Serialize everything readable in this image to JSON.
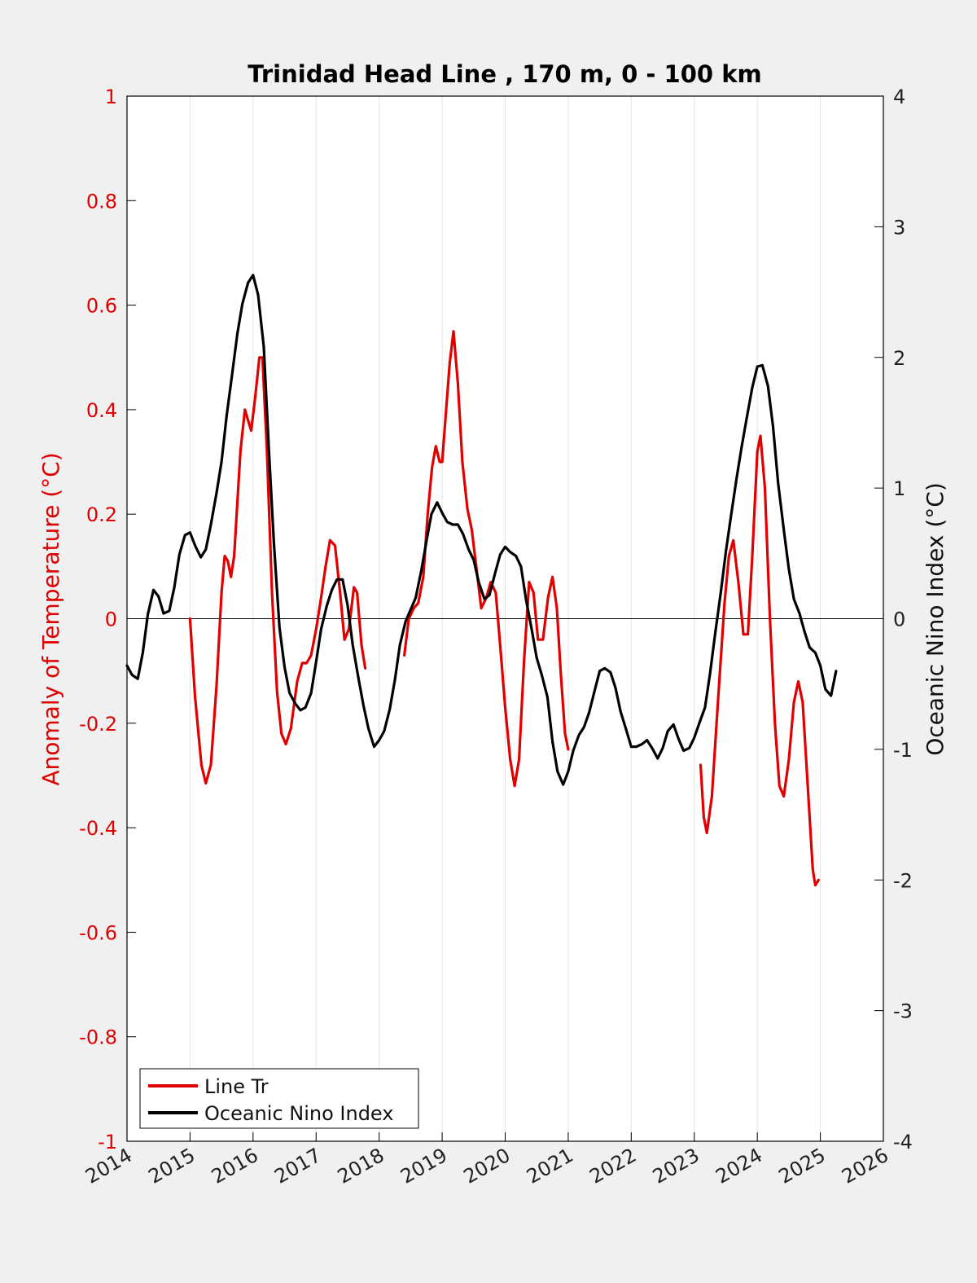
{
  "chart_data": {
    "type": "line",
    "title": "Trinidad Head Line , 170 m, 0 - 100 km",
    "ylabel_left": "Anomaly of Temperature (°C)",
    "ylabel_right": "Oceanic Nino Index (°C)",
    "xlim": [
      2014,
      2026
    ],
    "ylim_left": [
      -1,
      1
    ],
    "ylim_right": [
      -4,
      4
    ],
    "x_ticks": [
      "2014",
      "2015",
      "2016",
      "2017",
      "2018",
      "2019",
      "2020",
      "2021",
      "2022",
      "2023",
      "2024",
      "2025",
      "2026"
    ],
    "y_ticks_left": [
      "1",
      "0.8",
      "0.6",
      "0.4",
      "0.2",
      "0",
      "-0.2",
      "-0.4",
      "-0.6",
      "-0.8",
      "-1"
    ],
    "y_ticks_right": [
      "4",
      "3",
      "2",
      "1",
      "0",
      "-1",
      "-2",
      "-3",
      "-4"
    ],
    "grid": "vertical",
    "zero_line": true,
    "legend_position": "bottom-left",
    "colors": {
      "line_tr": "#e00000",
      "oni": "#000000"
    },
    "series": [
      {
        "name": "Line Tr",
        "axis": "left",
        "color": "#e00000",
        "segments": [
          [
            [
              2015.0,
              0.0
            ],
            [
              2015.08,
              -0.15
            ],
            [
              2015.18,
              -0.28
            ],
            [
              2015.25,
              -0.315
            ],
            [
              2015.33,
              -0.28
            ],
            [
              2015.42,
              -0.13
            ],
            [
              2015.5,
              0.05
            ],
            [
              2015.55,
              0.12
            ],
            [
              2015.6,
              0.11
            ],
            [
              2015.65,
              0.08
            ],
            [
              2015.7,
              0.12
            ],
            [
              2015.8,
              0.32
            ],
            [
              2015.87,
              0.4
            ],
            [
              2015.92,
              0.38
            ],
            [
              2015.97,
              0.36
            ],
            [
              2016.03,
              0.42
            ],
            [
              2016.1,
              0.5
            ],
            [
              2016.15,
              0.5
            ],
            [
              2016.22,
              0.32
            ],
            [
              2016.3,
              0.05
            ],
            [
              2016.38,
              -0.14
            ],
            [
              2016.45,
              -0.22
            ],
            [
              2016.52,
              -0.24
            ],
            [
              2016.6,
              -0.21
            ],
            [
              2016.7,
              -0.12
            ],
            [
              2016.78,
              -0.085
            ],
            [
              2016.85,
              -0.085
            ],
            [
              2016.92,
              -0.07
            ],
            [
              2017.0,
              -0.02
            ],
            [
              2017.08,
              0.04
            ],
            [
              2017.15,
              0.1
            ],
            [
              2017.22,
              0.15
            ],
            [
              2017.3,
              0.14
            ],
            [
              2017.38,
              0.05
            ],
            [
              2017.45,
              -0.04
            ],
            [
              2017.52,
              -0.02
            ],
            [
              2017.6,
              0.06
            ],
            [
              2017.65,
              0.05
            ],
            [
              2017.72,
              -0.05
            ],
            [
              2017.78,
              -0.095
            ]
          ],
          [
            [
              2018.4,
              -0.07
            ],
            [
              2018.47,
              0.0
            ],
            [
              2018.55,
              0.02
            ],
            [
              2018.62,
              0.03
            ],
            [
              2018.7,
              0.08
            ],
            [
              2018.77,
              0.2
            ],
            [
              2018.84,
              0.29
            ],
            [
              2018.9,
              0.33
            ],
            [
              2018.96,
              0.3
            ],
            [
              2019.0,
              0.3
            ],
            [
              2019.05,
              0.38
            ],
            [
              2019.12,
              0.49
            ],
            [
              2019.18,
              0.55
            ],
            [
              2019.25,
              0.45
            ],
            [
              2019.32,
              0.3
            ],
            [
              2019.4,
              0.21
            ],
            [
              2019.47,
              0.17
            ],
            [
              2019.55,
              0.09
            ],
            [
              2019.62,
              0.02
            ],
            [
              2019.7,
              0.04
            ],
            [
              2019.77,
              0.07
            ],
            [
              2019.85,
              0.05
            ],
            [
              2019.92,
              -0.05
            ],
            [
              2020.0,
              -0.17
            ],
            [
              2020.08,
              -0.27
            ],
            [
              2020.15,
              -0.32
            ],
            [
              2020.22,
              -0.27
            ],
            [
              2020.3,
              -0.08
            ],
            [
              2020.38,
              0.07
            ],
            [
              2020.45,
              0.05
            ],
            [
              2020.52,
              -0.04
            ],
            [
              2020.6,
              -0.04
            ],
            [
              2020.68,
              0.04
            ],
            [
              2020.75,
              0.08
            ],
            [
              2020.82,
              0.02
            ],
            [
              2020.88,
              -0.1
            ],
            [
              2020.95,
              -0.22
            ],
            [
              2021.0,
              -0.25
            ]
          ],
          [
            [
              2023.1,
              -0.28
            ],
            [
              2023.15,
              -0.38
            ],
            [
              2023.2,
              -0.41
            ],
            [
              2023.28,
              -0.34
            ],
            [
              2023.38,
              -0.15
            ],
            [
              2023.48,
              0.03
            ],
            [
              2023.55,
              0.12
            ],
            [
              2023.62,
              0.15
            ],
            [
              2023.7,
              0.07
            ],
            [
              2023.78,
              -0.03
            ],
            [
              2023.85,
              -0.03
            ],
            [
              2023.92,
              0.12
            ],
            [
              2024.0,
              0.32
            ],
            [
              2024.05,
              0.35
            ],
            [
              2024.12,
              0.25
            ],
            [
              2024.2,
              0.0
            ],
            [
              2024.28,
              -0.2
            ],
            [
              2024.35,
              -0.32
            ],
            [
              2024.42,
              -0.34
            ],
            [
              2024.5,
              -0.27
            ],
            [
              2024.58,
              -0.16
            ],
            [
              2024.65,
              -0.12
            ],
            [
              2024.72,
              -0.16
            ],
            [
              2024.8,
              -0.32
            ],
            [
              2024.88,
              -0.48
            ],
            [
              2024.92,
              -0.51
            ],
            [
              2024.97,
              -0.5
            ]
          ]
        ]
      },
      {
        "name": "Oceanic Nino Index",
        "axis": "right",
        "color": "#000000",
        "segments": [
          [
            [
              2014.0,
              -0.36
            ],
            [
              2014.08,
              -0.43
            ],
            [
              2014.17,
              -0.46
            ],
            [
              2014.25,
              -0.26
            ],
            [
              2014.33,
              0.03
            ],
            [
              2014.42,
              0.22
            ],
            [
              2014.5,
              0.17
            ],
            [
              2014.58,
              0.04
            ],
            [
              2014.67,
              0.06
            ],
            [
              2014.75,
              0.24
            ],
            [
              2014.83,
              0.49
            ],
            [
              2014.92,
              0.64
            ],
            [
              2015.0,
              0.66
            ],
            [
              2015.08,
              0.56
            ],
            [
              2015.17,
              0.47
            ],
            [
              2015.25,
              0.53
            ],
            [
              2015.33,
              0.72
            ],
            [
              2015.42,
              0.96
            ],
            [
              2015.5,
              1.2
            ],
            [
              2015.58,
              1.55
            ],
            [
              2015.67,
              1.88
            ],
            [
              2015.75,
              2.18
            ],
            [
              2015.83,
              2.41
            ],
            [
              2015.92,
              2.57
            ],
            [
              2016.0,
              2.63
            ],
            [
              2016.08,
              2.48
            ],
            [
              2016.17,
              2.08
            ],
            [
              2016.25,
              1.3
            ],
            [
              2016.33,
              0.58
            ],
            [
              2016.42,
              -0.07
            ],
            [
              2016.5,
              -0.37
            ],
            [
              2016.58,
              -0.57
            ],
            [
              2016.67,
              -0.65
            ],
            [
              2016.75,
              -0.7
            ],
            [
              2016.83,
              -0.68
            ],
            [
              2016.92,
              -0.57
            ],
            [
              2017.0,
              -0.33
            ],
            [
              2017.08,
              -0.08
            ],
            [
              2017.17,
              0.1
            ],
            [
              2017.25,
              0.22
            ],
            [
              2017.33,
              0.3
            ],
            [
              2017.42,
              0.3
            ],
            [
              2017.5,
              0.1
            ],
            [
              2017.58,
              -0.2
            ],
            [
              2017.67,
              -0.45
            ],
            [
              2017.75,
              -0.66
            ],
            [
              2017.83,
              -0.84
            ],
            [
              2017.92,
              -0.98
            ],
            [
              2018.0,
              -0.93
            ],
            [
              2018.08,
              -0.86
            ],
            [
              2018.17,
              -0.69
            ],
            [
              2018.25,
              -0.47
            ],
            [
              2018.33,
              -0.2
            ],
            [
              2018.42,
              -0.02
            ],
            [
              2018.5,
              0.07
            ],
            [
              2018.58,
              0.16
            ],
            [
              2018.67,
              0.37
            ],
            [
              2018.75,
              0.59
            ],
            [
              2018.83,
              0.8
            ],
            [
              2018.92,
              0.89
            ],
            [
              2019.0,
              0.81
            ],
            [
              2019.08,
              0.74
            ],
            [
              2019.17,
              0.72
            ],
            [
              2019.25,
              0.72
            ],
            [
              2019.33,
              0.65
            ],
            [
              2019.42,
              0.53
            ],
            [
              2019.5,
              0.45
            ],
            [
              2019.58,
              0.28
            ],
            [
              2019.67,
              0.15
            ],
            [
              2019.75,
              0.18
            ],
            [
              2019.83,
              0.33
            ],
            [
              2019.92,
              0.49
            ],
            [
              2020.0,
              0.55
            ],
            [
              2020.08,
              0.51
            ],
            [
              2020.17,
              0.48
            ],
            [
              2020.25,
              0.4
            ],
            [
              2020.33,
              0.15
            ],
            [
              2020.42,
              -0.08
            ],
            [
              2020.5,
              -0.3
            ],
            [
              2020.58,
              -0.43
            ],
            [
              2020.67,
              -0.6
            ],
            [
              2020.75,
              -0.94
            ],
            [
              2020.83,
              -1.17
            ],
            [
              2020.92,
              -1.27
            ],
            [
              2021.0,
              -1.17
            ],
            [
              2021.08,
              -1.01
            ],
            [
              2021.17,
              -0.89
            ],
            [
              2021.25,
              -0.83
            ],
            [
              2021.33,
              -0.72
            ],
            [
              2021.42,
              -0.55
            ],
            [
              2021.5,
              -0.4
            ],
            [
              2021.58,
              -0.38
            ],
            [
              2021.67,
              -0.41
            ],
            [
              2021.75,
              -0.53
            ],
            [
              2021.83,
              -0.71
            ],
            [
              2021.92,
              -0.85
            ],
            [
              2022.0,
              -0.98
            ],
            [
              2022.08,
              -0.98
            ],
            [
              2022.17,
              -0.96
            ],
            [
              2022.25,
              -0.93
            ],
            [
              2022.33,
              -0.99
            ],
            [
              2022.42,
              -1.07
            ],
            [
              2022.5,
              -0.99
            ],
            [
              2022.58,
              -0.86
            ],
            [
              2022.67,
              -0.81
            ],
            [
              2022.75,
              -0.92
            ],
            [
              2022.83,
              -1.01
            ],
            [
              2022.92,
              -0.99
            ],
            [
              2023.0,
              -0.91
            ],
            [
              2023.08,
              -0.8
            ],
            [
              2023.17,
              -0.68
            ],
            [
              2023.25,
              -0.42
            ],
            [
              2023.33,
              -0.12
            ],
            [
              2023.42,
              0.2
            ],
            [
              2023.5,
              0.51
            ],
            [
              2023.58,
              0.78
            ],
            [
              2023.67,
              1.07
            ],
            [
              2023.75,
              1.31
            ],
            [
              2023.83,
              1.53
            ],
            [
              2023.92,
              1.77
            ],
            [
              2024.0,
              1.93
            ],
            [
              2024.08,
              1.94
            ],
            [
              2024.17,
              1.78
            ],
            [
              2024.25,
              1.47
            ],
            [
              2024.33,
              1.04
            ],
            [
              2024.42,
              0.68
            ],
            [
              2024.5,
              0.38
            ],
            [
              2024.58,
              0.15
            ],
            [
              2024.67,
              0.04
            ],
            [
              2024.75,
              -0.1
            ],
            [
              2024.83,
              -0.22
            ],
            [
              2024.92,
              -0.26
            ],
            [
              2025.0,
              -0.36
            ],
            [
              2025.08,
              -0.54
            ],
            [
              2025.17,
              -0.59
            ],
            [
              2025.25,
              -0.4
            ]
          ]
        ]
      }
    ]
  }
}
